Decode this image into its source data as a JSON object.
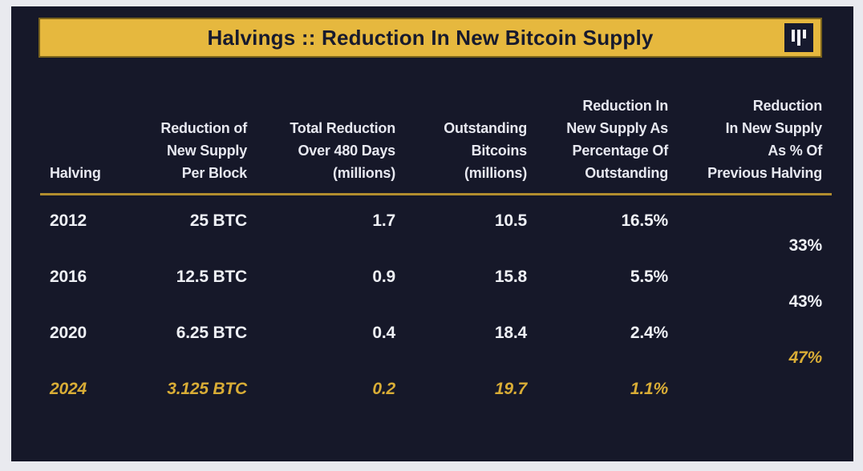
{
  "banner": {
    "title": "Halvings :: Reduction In New Bitcoin Supply"
  },
  "colors": {
    "background_navy": "#161829",
    "banner_gold": "#e6b83e",
    "rule_gold": "#b18d2e",
    "text_white": "#eef0f5",
    "highlight_gold": "#d9ad36"
  },
  "table": {
    "headers": [
      {
        "lines": [
          "Halving"
        ]
      },
      {
        "lines": [
          "Reduction of",
          "New Supply",
          "Per Block"
        ]
      },
      {
        "lines": [
          "Total Reduction",
          "Over 480 Days",
          "(millions)"
        ]
      },
      {
        "lines": [
          "Outstanding",
          "Bitcoins",
          "(millions)"
        ]
      },
      {
        "lines": [
          "Reduction In",
          "New Supply As",
          "Percentage Of",
          "Outstanding"
        ]
      },
      {
        "lines": [
          "Reduction",
          "In New Supply",
          "As % Of",
          "Previous Halving"
        ]
      }
    ],
    "rows": [
      {
        "year": "2012",
        "per_block": "25 BTC",
        "total_480d": "1.7",
        "outstanding": "10.5",
        "pct_outstanding": "16.5%",
        "pct_previous": "33%",
        "highlight": false
      },
      {
        "year": "2016",
        "per_block": "12.5 BTC",
        "total_480d": "0.9",
        "outstanding": "15.8",
        "pct_outstanding": "5.5%",
        "pct_previous": "43%",
        "highlight": false
      },
      {
        "year": "2020",
        "per_block": "6.25 BTC",
        "total_480d": "0.4",
        "outstanding": "18.4",
        "pct_outstanding": "2.4%",
        "pct_previous": "47%",
        "highlight": false
      },
      {
        "year": "2024",
        "per_block": "3.125 BTC",
        "total_480d": "0.2",
        "outstanding": "19.7",
        "pct_outstanding": "1.1%",
        "pct_previous": "",
        "highlight": true
      }
    ]
  },
  "chart_data": {
    "type": "table",
    "title": "Halvings :: Reduction In New Bitcoin Supply",
    "columns": [
      "Halving",
      "Reduction of New Supply Per Block",
      "Total Reduction Over 480 Days (millions)",
      "Outstanding Bitcoins (millions)",
      "Reduction In New Supply As Percentage Of Outstanding",
      "Reduction In New Supply As % Of Previous Halving"
    ],
    "rows": [
      [
        "2012",
        "25 BTC",
        1.7,
        10.5,
        "16.5%",
        null
      ],
      [
        "2016",
        "12.5 BTC",
        0.9,
        15.8,
        "5.5%",
        "33%"
      ],
      [
        "2020",
        "6.25 BTC",
        0.4,
        18.4,
        "2.4%",
        "43%"
      ],
      [
        "2024",
        "3.125 BTC",
        0.2,
        19.7,
        "1.1%",
        "47%"
      ]
    ],
    "notes": "Last column values (33%, 43%, 47%) are rendered offset between consecutive rows; 2024 row and 47% are highlighted in gold italic.",
    "highlighted_row": "2024"
  }
}
